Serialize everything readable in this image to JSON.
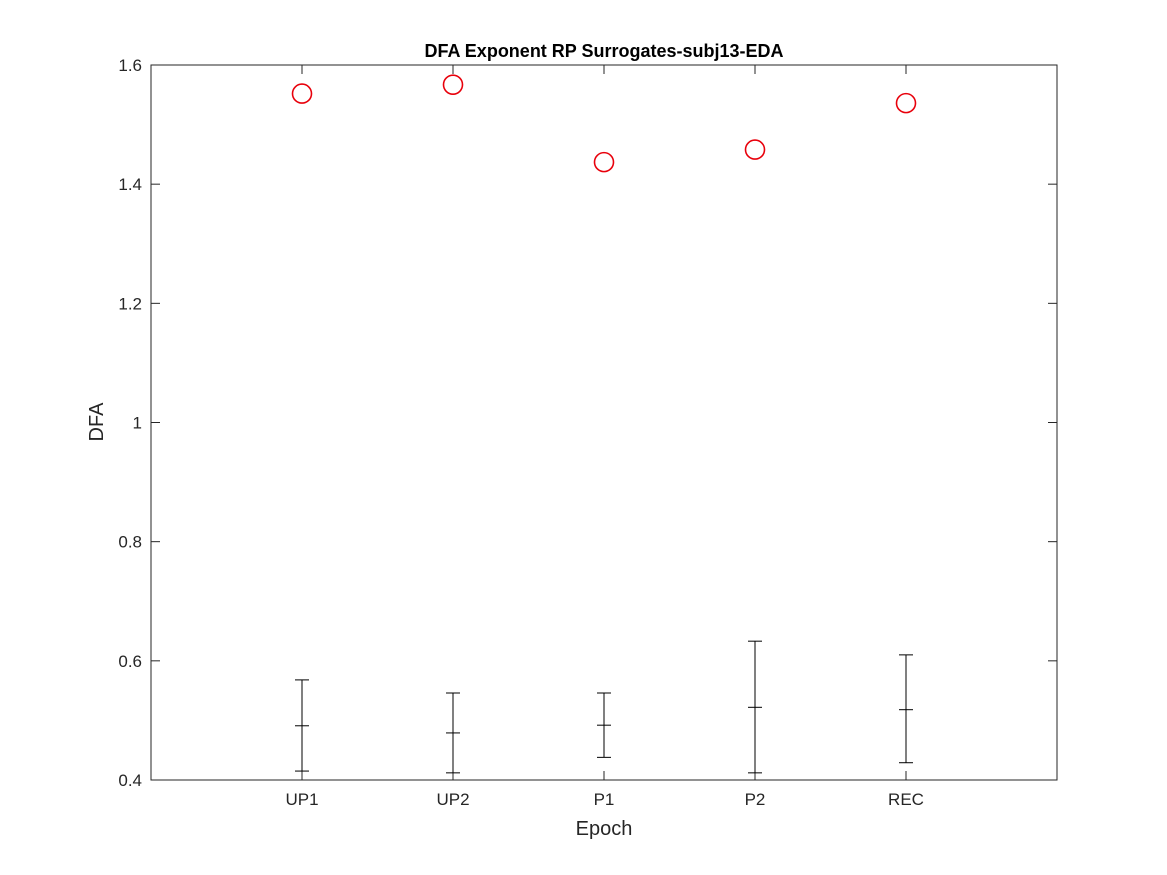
{
  "chart_data": {
    "type": "scatter",
    "title": "DFA Exponent RP Surrogates-subj13-EDA",
    "xlabel": "Epoch",
    "ylabel": "DFA",
    "categories": [
      "UP1",
      "UP2",
      "P1",
      "P2",
      "REC"
    ],
    "xlim": [
      0,
      6
    ],
    "ylim": [
      0.4,
      1.6
    ],
    "yticks": [
      0.4,
      0.6,
      0.8,
      1,
      1.2,
      1.4,
      1.6
    ],
    "ytick_labels": [
      "0.4",
      "0.6",
      "0.8",
      "1",
      "1.2",
      "1.4",
      "1.6"
    ],
    "grid": false,
    "series": [
      {
        "marker": "circle",
        "color": "#e8000b",
        "values": [
          1.552,
          1.567,
          1.437,
          1.458,
          1.536
        ]
      },
      {
        "marker": "errorbar",
        "color": "#000000",
        "values": [
          0.491,
          0.479,
          0.492,
          0.522,
          0.518
        ],
        "lower": [
          0.415,
          0.412,
          0.438,
          0.412,
          0.429
        ],
        "upper": [
          0.568,
          0.546,
          0.546,
          0.633,
          0.61
        ]
      }
    ]
  }
}
